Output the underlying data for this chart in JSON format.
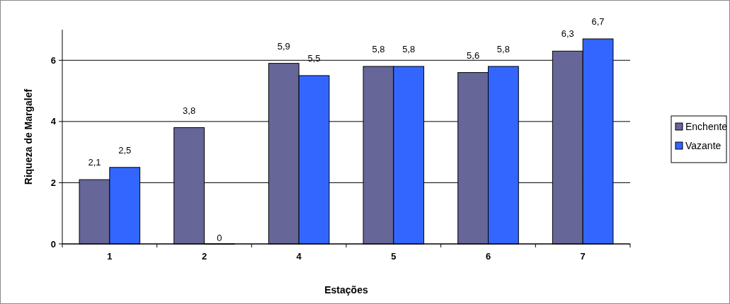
{
  "chart_data": {
    "type": "bar",
    "xlabel": "Estações",
    "ylabel": "Riqueza de Margalef",
    "categories": [
      "1",
      "2",
      "4",
      "5",
      "6",
      "7"
    ],
    "series": [
      {
        "name": "Enchente",
        "color": "#666699",
        "values": [
          2.1,
          3.8,
          5.9,
          5.8,
          5.6,
          6.3
        ],
        "value_labels": [
          "2,1",
          "3,8",
          "5,9",
          "5,8",
          "5,6",
          "6,3"
        ]
      },
      {
        "name": "Vazante",
        "color": "#3366ff",
        "values": [
          2.5,
          0,
          5.5,
          5.8,
          5.8,
          6.7
        ],
        "value_labels": [
          "2,5",
          "0",
          "5,5",
          "5,8",
          "5,8",
          "6,7"
        ]
      }
    ],
    "ylim": [
      0,
      7
    ],
    "yticks": [
      0,
      2,
      4,
      6
    ],
    "grid": "y",
    "legend": "right"
  }
}
